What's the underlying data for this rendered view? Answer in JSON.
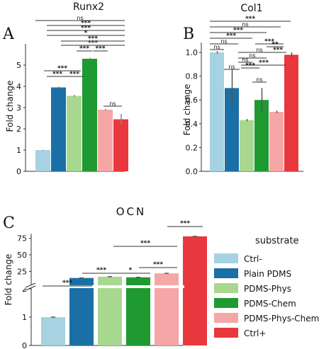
{
  "chart_data": [
    {
      "panel": "A",
      "type": "bar",
      "title": "Runx2",
      "ylabel": "Fold change",
      "ylim": [
        0,
        6
      ],
      "yticks": [
        "0",
        "1",
        "2",
        "3",
        "4",
        "5"
      ],
      "categories": [
        "Ctrl-",
        "Plain PDMS",
        "PDMS-Phys",
        "PDMS-Chem",
        "PDMS-Phys-Chem",
        "Ctrl+"
      ],
      "values": [
        1.0,
        3.95,
        3.55,
        5.3,
        2.9,
        2.45
      ],
      "errors": [
        0.02,
        0.05,
        0.05,
        0.05,
        0.04,
        0.25
      ],
      "significance": [
        {
          "a": 1,
          "b": 2,
          "label": "***"
        },
        {
          "a": 2,
          "b": 3,
          "label": "***"
        },
        {
          "a": 0,
          "b": 2,
          "label": "***"
        },
        {
          "a": 3,
          "b": 4,
          "label": "***"
        },
        {
          "a": 4,
          "b": 5,
          "label": "***"
        },
        {
          "a": 4,
          "b": 5,
          "label": "ns"
        },
        {
          "a": 2,
          "b": 4,
          "label": "***"
        },
        {
          "a": 2,
          "b": 5,
          "label": "***"
        },
        {
          "a": 1,
          "b": 5,
          "label": "*"
        },
        {
          "a": 1,
          "b": 5,
          "label": "***"
        },
        {
          "a": 1,
          "b": 5,
          "label": "***"
        },
        {
          "a": 1,
          "b": 5,
          "label": "ns"
        }
      ]
    },
    {
      "panel": "B",
      "type": "bar",
      "title": "Col1",
      "ylabel": "Fold change",
      "ylim": [
        0,
        1.0
      ],
      "yticks": [
        "0.0",
        "0.2",
        "0.4",
        "0.6",
        "0.8",
        "1.0"
      ],
      "categories": [
        "Ctrl-",
        "Plain PDMS",
        "PDMS-Phys",
        "PDMS-Chem",
        "PDMS-Phys-Chem",
        "Ctrl+"
      ],
      "values": [
        1.0,
        0.7,
        0.43,
        0.6,
        0.5,
        0.98
      ],
      "errors": [
        0.01,
        0.16,
        0.01,
        0.1,
        0.01,
        0.02
      ],
      "significance": [
        {
          "label": "ns"
        },
        {
          "label": "ns"
        },
        {
          "label": "***"
        },
        {
          "label": "***"
        },
        {
          "label": "ns"
        },
        {
          "label": "ns"
        },
        {
          "label": "ns"
        },
        {
          "label": "ns"
        },
        {
          "label": "***"
        },
        {
          "label": "***"
        },
        {
          "label": "ns"
        },
        {
          "label": "***"
        },
        {
          "label": "ns"
        },
        {
          "label": "***"
        },
        {
          "label": "**"
        },
        {
          "label": "***"
        }
      ]
    },
    {
      "panel": "C",
      "type": "bar",
      "title": "OCN",
      "ylabel": "Fold change",
      "yticks_lower": [
        "0",
        "1",
        "2"
      ],
      "yticks_upper": [
        "25",
        "50",
        "75"
      ],
      "categories": [
        "Ctrl-",
        "Plain PDMS",
        "PDMS-Phys",
        "PDMS-Chem",
        "PDMS-Phys-Chem",
        "Ctrl+"
      ],
      "values": [
        1.0,
        15,
        17,
        16,
        22,
        78
      ],
      "significance": [
        {
          "label": "***"
        },
        {
          "label": "***"
        },
        {
          "label": "*"
        },
        {
          "label": "***"
        },
        {
          "label": "***"
        },
        {
          "label": "***"
        }
      ],
      "legend": {
        "title": "substrate",
        "entries": [
          "Ctrl-",
          "Plain PDMS",
          "PDMS-Phys",
          "PDMS-Chem",
          "PDMS-Phys-Chem",
          "Ctrl+"
        ]
      }
    }
  ],
  "colors": [
    "#a7d2e2",
    "#1a6fa6",
    "#a8d890",
    "#1e9a31",
    "#f6a6a6",
    "#e8383d"
  ]
}
